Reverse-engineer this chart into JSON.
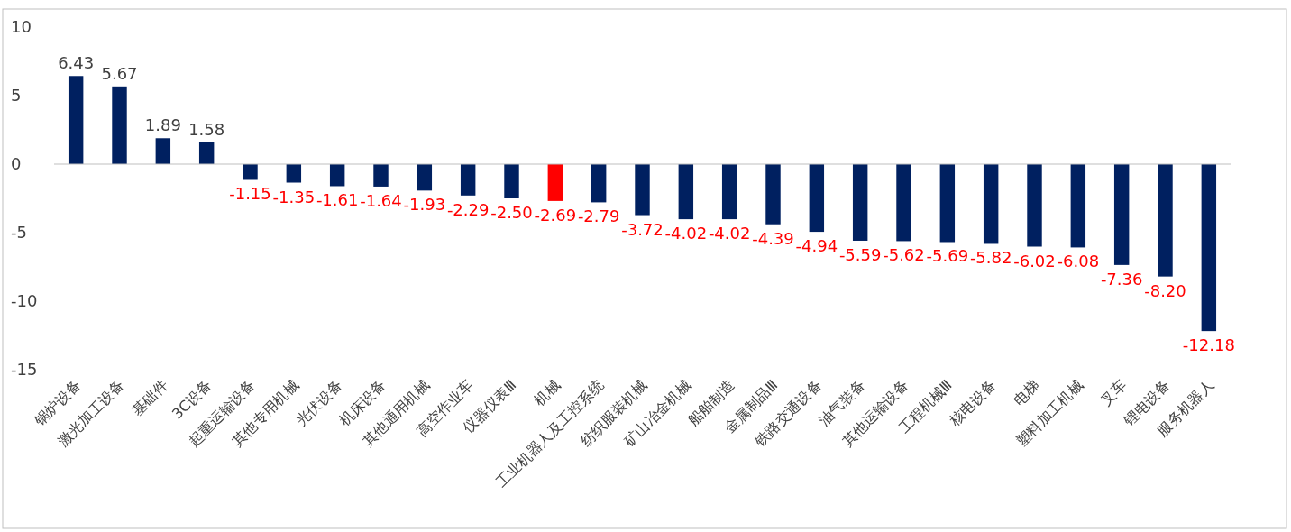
{
  "chart_data": {
    "type": "bar",
    "categories": [
      "锅炉设备",
      "激光加工设备",
      "基础件",
      "3C设备",
      "起重运输设备",
      "其他专用机械",
      "光伏设备",
      "机床设备",
      "其他通用机械",
      "高空作业车",
      "仪器仪表Ⅲ",
      "机械",
      "工业机器人及工控系统",
      "纺织服装机械",
      "矿山冶金机械",
      "船舶制造",
      "金属制品Ⅲ",
      "铁路交通设备",
      "油气装备",
      "其他运输设备",
      "工程机械Ⅲ",
      "核电设备",
      "电梯",
      "塑料加工机械",
      "叉车",
      "锂电设备",
      "服务机器人"
    ],
    "values": [
      6.43,
      5.67,
      1.89,
      1.58,
      -1.15,
      -1.35,
      -1.61,
      -1.64,
      -1.93,
      -2.29,
      -2.5,
      -2.69,
      -2.79,
      -3.72,
      -4.02,
      -4.02,
      -4.39,
      -4.94,
      -5.59,
      -5.62,
      -5.69,
      -5.82,
      -6.02,
      -6.08,
      -7.36,
      -8.2,
      -12.18
    ],
    "value_labels": [
      "6.43",
      "5.67",
      "1.89",
      "1.58",
      "-1.15",
      "-1.35",
      "-1.61",
      "-1.64",
      "-1.93",
      "-2.29",
      "-2.50",
      "-2.69",
      "-2.79",
      "-3.72",
      "-4.02",
      "-4.02",
      "-4.39",
      "-4.94",
      "-5.59",
      "-5.62",
      "-5.69",
      "-5.82",
      "-6.02",
      "-6.08",
      "-7.36",
      "-8.20",
      "-12.18"
    ],
    "colors": [
      "#002060",
      "#002060",
      "#002060",
      "#002060",
      "#002060",
      "#002060",
      "#002060",
      "#002060",
      "#002060",
      "#002060",
      "#002060",
      "#ff0000",
      "#002060",
      "#002060",
      "#002060",
      "#002060",
      "#002060",
      "#002060",
      "#002060",
      "#002060",
      "#002060",
      "#002060",
      "#002060",
      "#002060",
      "#002060",
      "#002060",
      "#002060"
    ],
    "ylim": [
      -15,
      10
    ],
    "yticks": [
      -15,
      -10,
      -5,
      0,
      5,
      10
    ]
  }
}
